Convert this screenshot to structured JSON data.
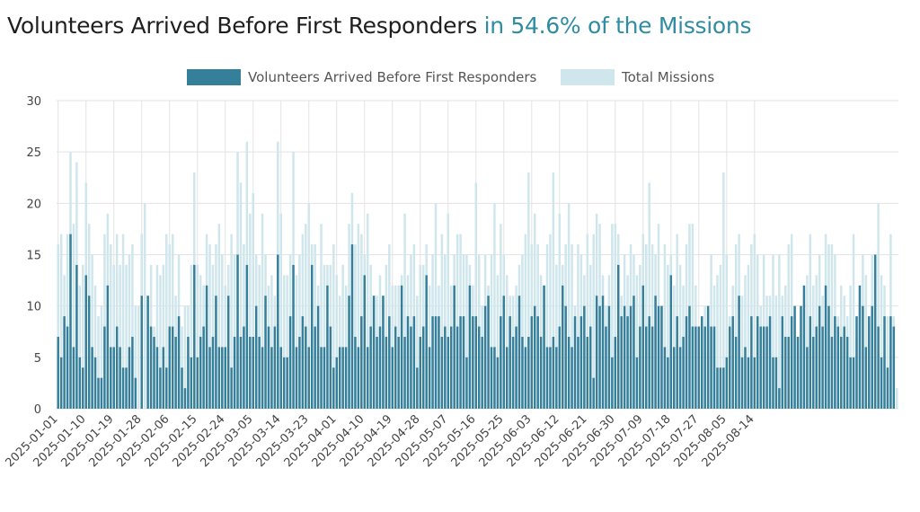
{
  "title": {
    "main": "Volunteers Arrived Before First Responders",
    "accent": "in 54.6% of the Missions"
  },
  "colors": {
    "arrived": "#367f9b",
    "total": "#cfe6ec",
    "accent": "#2f8ca3",
    "grid": "#e3e3e3"
  },
  "chart_data": {
    "type": "bar",
    "legend_position": "top",
    "grid": true,
    "ylim": [
      0,
      30
    ],
    "yticks": [
      0,
      5,
      10,
      15,
      20,
      25,
      30
    ],
    "x_start": "2025-01-01",
    "x_end": "2025-08-15",
    "x_tick_labels": [
      "2025-01-01",
      "2025-01-10",
      "2025-01-19",
      "2025-01-28",
      "2025-02-06",
      "2025-02-15",
      "2025-02-24",
      "2025-03-05",
      "2025-03-14",
      "2025-03-23",
      "2025-04-01",
      "2025-04-10",
      "2025-04-19",
      "2025-04-28",
      "2025-05-07",
      "2025-05-16",
      "2025-05-25",
      "2025-06-03",
      "2025-06-12",
      "2025-06-21",
      "2025-06-30",
      "2025-07-09",
      "2025-07-18",
      "2025-07-27",
      "2025-08-05",
      "2025-08-14"
    ],
    "series": [
      {
        "name": "Volunteers Arrived Before First Responders",
        "values": [
          7,
          5,
          9,
          8,
          17,
          6,
          14,
          5,
          4,
          13,
          11,
          6,
          5,
          3,
          3,
          8,
          12,
          6,
          6,
          8,
          6,
          4,
          4,
          6,
          7,
          3,
          0,
          11,
          0,
          11,
          8,
          7,
          6,
          4,
          6,
          4,
          8,
          8,
          7,
          9,
          4,
          2,
          7,
          5,
          14,
          5,
          7,
          8,
          12,
          6,
          7,
          11,
          6,
          6,
          6,
          11,
          4,
          7,
          15,
          7,
          8,
          14,
          7,
          7,
          10,
          7,
          6,
          11,
          8,
          6,
          8,
          15,
          6,
          5,
          5,
          9,
          14,
          6,
          7,
          9,
          8,
          6,
          14,
          8,
          10,
          6,
          6,
          12,
          8,
          4,
          5,
          6,
          6,
          6,
          11,
          16,
          7,
          6,
          9,
          13,
          6,
          8,
          11,
          7,
          8,
          11,
          7,
          9,
          6,
          8,
          7,
          12,
          7,
          9,
          8,
          9,
          4,
          7,
          8,
          13,
          6,
          9,
          9,
          9,
          7,
          8,
          7,
          8,
          12,
          8,
          9,
          9,
          5,
          12,
          9,
          9,
          8,
          7,
          10,
          11,
          6,
          6,
          5,
          9,
          11,
          6,
          9,
          7,
          8,
          11,
          7,
          6,
          7,
          9,
          10,
          9,
          7,
          12,
          6,
          6,
          7,
          6,
          8,
          12,
          10,
          7,
          6,
          9,
          7,
          9,
          10,
          7,
          8,
          3,
          11,
          10,
          11,
          8,
          10,
          5,
          7,
          14,
          9,
          10,
          9,
          10,
          11,
          5,
          8,
          12,
          8,
          9,
          8,
          11,
          10,
          10,
          6,
          5,
          13,
          6,
          9,
          6,
          7,
          9,
          10,
          8,
          8,
          8,
          9,
          8,
          10,
          8,
          8,
          4,
          4,
          4,
          5,
          8,
          9,
          7,
          11,
          5,
          6,
          5,
          9,
          5,
          9,
          8,
          8,
          8,
          9,
          5,
          5,
          2,
          9,
          7,
          7,
          9,
          10,
          7,
          10,
          12,
          6,
          9,
          7,
          8,
          10,
          8,
          12,
          10,
          7,
          9,
          8,
          7,
          8,
          7,
          5,
          5,
          9,
          12,
          10,
          6,
          9,
          10,
          15,
          8,
          5,
          9,
          4,
          9,
          8,
          0
        ],
        "color": "#367f9b"
      },
      {
        "name": "Total Missions",
        "values": [
          16,
          17,
          13,
          17,
          25,
          18,
          24,
          12,
          14,
          22,
          18,
          15,
          12,
          9,
          10,
          17,
          19,
          16,
          14,
          17,
          14,
          17,
          14,
          15,
          16,
          10,
          10,
          17,
          20,
          11,
          14,
          8,
          14,
          13,
          14,
          17,
          16,
          17,
          11,
          15,
          8,
          10,
          10,
          14,
          23,
          14,
          13,
          12,
          17,
          16,
          14,
          16,
          18,
          15,
          12,
          14,
          17,
          15,
          25,
          22,
          16,
          26,
          19,
          21,
          15,
          14,
          19,
          15,
          12,
          13,
          11,
          26,
          19,
          13,
          13,
          15,
          25,
          13,
          15,
          17,
          18,
          20,
          16,
          16,
          12,
          18,
          14,
          14,
          14,
          16,
          13,
          11,
          14,
          12,
          18,
          21,
          16,
          18,
          17,
          15,
          19,
          14,
          11,
          11,
          13,
          11,
          14,
          16,
          12,
          12,
          12,
          13,
          19,
          13,
          15,
          16,
          11,
          14,
          14,
          16,
          12,
          15,
          20,
          12,
          17,
          15,
          19,
          12,
          15,
          17,
          17,
          15,
          15,
          14,
          12,
          22,
          15,
          10,
          15,
          12,
          15,
          20,
          13,
          18,
          15,
          13,
          11,
          11,
          12,
          14,
          15,
          17,
          23,
          16,
          19,
          16,
          13,
          12,
          16,
          17,
          23,
          14,
          19,
          14,
          16,
          20,
          16,
          10,
          16,
          15,
          13,
          17,
          14,
          17,
          19,
          18,
          13,
          10,
          13,
          18,
          18,
          17,
          11,
          15,
          13,
          16,
          15,
          13,
          14,
          17,
          16,
          22,
          16,
          15,
          18,
          10,
          16,
          14,
          15,
          12,
          17,
          14,
          12,
          16,
          18,
          18,
          12,
          7,
          9,
          10,
          10,
          15,
          12,
          13,
          14,
          23,
          15,
          9,
          12,
          16,
          17,
          11,
          13,
          14,
          16,
          17,
          15,
          10,
          15,
          11,
          11,
          15,
          11,
          15,
          11,
          12,
          16,
          17,
          9,
          7,
          10,
          11,
          13,
          17,
          12,
          13,
          15,
          11,
          17,
          16,
          16,
          15,
          9,
          12,
          11,
          9,
          12,
          17,
          7,
          10,
          15,
          13,
          9,
          15,
          13,
          20,
          13,
          12,
          9,
          17,
          9,
          2
        ]
      }
    ]
  }
}
